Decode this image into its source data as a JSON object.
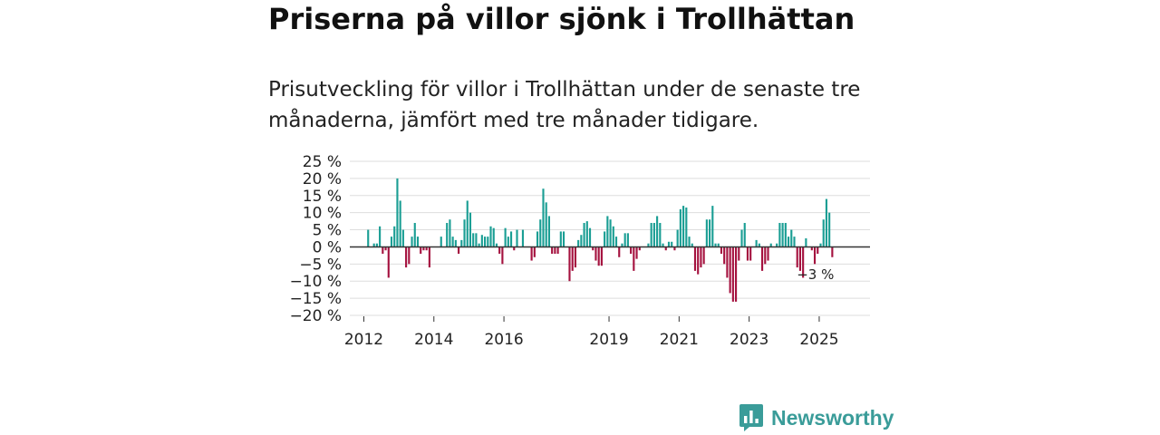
{
  "title": "Priserna på villor sjönk i Trollhättan",
  "subtitle": "Prisutveckling för villor i Trollhättan under de senaste tre månaderna, jämfört med tre månader tidigare.",
  "brand": "Newsworthy",
  "colors": {
    "positive": "#1a9e94",
    "negative": "#a5123f",
    "grid": "#dddddd",
    "zero": "#333333",
    "brand": "#3a9c99"
  },
  "chart_data": {
    "type": "bar",
    "title": "Priserna på villor sjönk i Trollhättan",
    "ylabel": "",
    "xlabel": "",
    "ylim": [
      -20,
      25
    ],
    "yticks": [
      -20,
      -15,
      -10,
      -5,
      0,
      5,
      10,
      15,
      20,
      25
    ],
    "ytick_labels": [
      "−20 %",
      "−15 %",
      "−10 %",
      "−5 %",
      "0 %",
      "5 %",
      "10 %",
      "15 %",
      "20 %",
      "25 %"
    ],
    "xlim": [
      2011.6,
      2026.45
    ],
    "xticks": [
      {
        "value": 2012,
        "label": "2012"
      },
      {
        "value": 2014,
        "label": "2014"
      },
      {
        "value": 2016,
        "label": "2016"
      },
      {
        "value": 2019,
        "label": "2019"
      },
      {
        "value": 2021,
        "label": "2021"
      },
      {
        "value": 2023,
        "label": "2023"
      },
      {
        "value": 2025,
        "label": "2025"
      }
    ],
    "start": 2012.04,
    "step": 0.08333,
    "values": [
      0,
      5,
      0,
      1,
      1,
      6,
      -2,
      -1,
      -9,
      3,
      6,
      20,
      13.5,
      5,
      -6,
      -5,
      3,
      7,
      3,
      -2,
      -1,
      -1,
      -6,
      0,
      0,
      0,
      3,
      0,
      7,
      8,
      3,
      2,
      -2,
      2,
      8,
      13.5,
      10,
      4,
      4,
      1,
      3.5,
      3,
      3,
      6,
      5.5,
      1,
      -2,
      -5,
      5.5,
      3,
      4.5,
      -1,
      5,
      0,
      5,
      0,
      0,
      -4,
      -3,
      4.5,
      8,
      17,
      13,
      9,
      -2,
      -2,
      -2,
      4.5,
      4.5,
      0,
      -10,
      -7,
      -6,
      2,
      3.5,
      7,
      7.5,
      5.5,
      -1,
      -4,
      -5.5,
      -5.5,
      4.5,
      9,
      8,
      6,
      3,
      -3,
      1,
      4,
      4,
      -2,
      -7,
      -3.5,
      -1,
      0,
      0,
      1,
      7,
      7,
      9,
      7,
      1,
      -1,
      1.5,
      1.5,
      -1,
      5,
      11,
      12,
      11.5,
      3,
      1,
      -7,
      -8,
      -6,
      -5,
      8,
      8,
      12,
      1,
      1,
      -2,
      -5,
      -9,
      -13.5,
      -16,
      -16,
      -4,
      5,
      7,
      -4,
      -4,
      0,
      2,
      1,
      -7,
      -5,
      -4,
      1,
      0,
      1,
      7,
      7,
      7,
      3,
      5,
      3,
      -6,
      -7,
      -9,
      2.5,
      0,
      -1,
      -5,
      -2,
      1,
      8,
      14,
      10,
      -3
    ],
    "last_label": "−3 %"
  }
}
